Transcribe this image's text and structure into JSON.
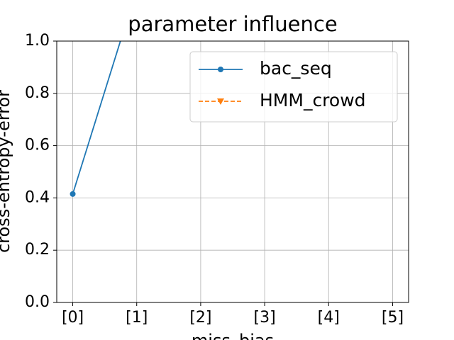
{
  "chart_data": {
    "type": "line",
    "title": "parameter influence",
    "x_label": "miss_bias",
    "y_label": "cross-entropy-error",
    "categories": [
      "[0]",
      "[1]",
      "[2]",
      "[3]",
      "[4]",
      "[5]"
    ],
    "series": [
      {
        "name": "bac_seq",
        "color": "#1f77b4",
        "linestyle": "solid",
        "marker": "circle",
        "values": [
          0.415,
          1.2,
          null,
          null,
          null,
          null
        ]
      },
      {
        "name": "HMM_crowd",
        "color": "#ff7f0e",
        "linestyle": "dashed",
        "marker": "triangle-down",
        "values": [
          null,
          null,
          null,
          null,
          null,
          null
        ]
      }
    ],
    "ylim": [
      0,
      1
    ],
    "yticks": [
      {
        "value": 0,
        "label": "0.0"
      },
      0.2,
      0.4,
      0.6,
      0.8,
      {
        "value": 1,
        "label": "1.0"
      }
    ],
    "grid": true,
    "legend": "upper right"
  }
}
